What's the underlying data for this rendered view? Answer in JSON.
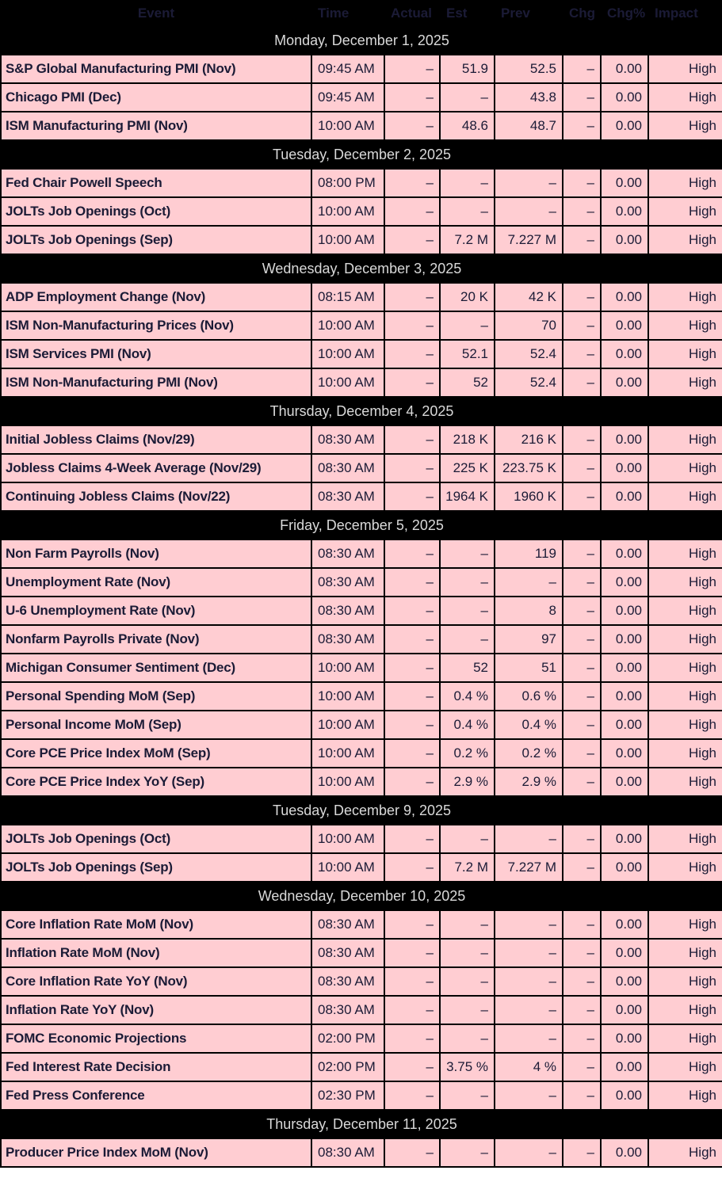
{
  "colors": {
    "header_bg": "#000000",
    "header_text": "#ffffff",
    "row_bg": "#ffcdd2",
    "row_text": "#1b1b36",
    "separator_bg": "#000000",
    "separator_text": "#d9d9d9",
    "border": "#000000"
  },
  "table": {
    "columns": [
      "Event",
      "Time",
      "Actual",
      "Est",
      "Prev",
      "Chg",
      "Chg%",
      "Impact"
    ],
    "sections": [
      {
        "date": "Monday, December 1, 2025",
        "rows": [
          {
            "event": "S&P Global Manufacturing PMI (Nov)",
            "time": "09:45 AM",
            "actual": "–",
            "est": "51.9",
            "prev": "52.5",
            "chg": "–",
            "chg_pct": "0.00",
            "impact": "High"
          },
          {
            "event": "Chicago PMI (Dec)",
            "time": "09:45 AM",
            "actual": "–",
            "est": "–",
            "prev": "43.8",
            "chg": "–",
            "chg_pct": "0.00",
            "impact": "High"
          },
          {
            "event": "ISM Manufacturing PMI (Nov)",
            "time": "10:00 AM",
            "actual": "–",
            "est": "48.6",
            "prev": "48.7",
            "chg": "–",
            "chg_pct": "0.00",
            "impact": "High"
          }
        ]
      },
      {
        "date": "Tuesday, December 2, 2025",
        "rows": [
          {
            "event": "Fed Chair Powell Speech",
            "time": "08:00 PM",
            "actual": "–",
            "est": "–",
            "prev": "–",
            "chg": "–",
            "chg_pct": "0.00",
            "impact": "High"
          },
          {
            "event": "JOLTs Job Openings (Oct)",
            "time": "10:00 AM",
            "actual": "–",
            "est": "–",
            "prev": "–",
            "chg": "–",
            "chg_pct": "0.00",
            "impact": "High"
          },
          {
            "event": "JOLTs Job Openings (Sep)",
            "time": "10:00 AM",
            "actual": "–",
            "est": "7.2 M",
            "prev": "7.227 M",
            "chg": "–",
            "chg_pct": "0.00",
            "impact": "High"
          }
        ]
      },
      {
        "date": "Wednesday, December 3, 2025",
        "rows": [
          {
            "event": "ADP Employment Change (Nov)",
            "time": "08:15 AM",
            "actual": "–",
            "est": "20 K",
            "prev": "42 K",
            "chg": "–",
            "chg_pct": "0.00",
            "impact": "High"
          },
          {
            "event": "ISM Non-Manufacturing Prices (Nov)",
            "time": "10:00 AM",
            "actual": "–",
            "est": "–",
            "prev": "70",
            "chg": "–",
            "chg_pct": "0.00",
            "impact": "High"
          },
          {
            "event": "ISM Services PMI (Nov)",
            "time": "10:00 AM",
            "actual": "–",
            "est": "52.1",
            "prev": "52.4",
            "chg": "–",
            "chg_pct": "0.00",
            "impact": "High"
          },
          {
            "event": "ISM Non-Manufacturing PMI (Nov)",
            "time": "10:00 AM",
            "actual": "–",
            "est": "52",
            "prev": "52.4",
            "chg": "–",
            "chg_pct": "0.00",
            "impact": "High"
          }
        ]
      },
      {
        "date": "Thursday, December 4, 2025",
        "rows": [
          {
            "event": "Initial Jobless Claims (Nov/29)",
            "time": "08:30 AM",
            "actual": "–",
            "est": "218 K",
            "prev": "216 K",
            "chg": "–",
            "chg_pct": "0.00",
            "impact": "High"
          },
          {
            "event": "Jobless Claims 4-Week Average (Nov/29)",
            "time": "08:30 AM",
            "actual": "–",
            "est": "225 K",
            "prev": "223.75 K",
            "chg": "–",
            "chg_pct": "0.00",
            "impact": "High"
          },
          {
            "event": "Continuing Jobless Claims (Nov/22)",
            "time": "08:30 AM",
            "actual": "–",
            "est": "1964 K",
            "prev": "1960 K",
            "chg": "–",
            "chg_pct": "0.00",
            "impact": "High"
          }
        ]
      },
      {
        "date": "Friday, December 5, 2025",
        "rows": [
          {
            "event": "Non Farm Payrolls (Nov)",
            "time": "08:30 AM",
            "actual": "–",
            "est": "–",
            "prev": "119",
            "chg": "–",
            "chg_pct": "0.00",
            "impact": "High"
          },
          {
            "event": "Unemployment Rate (Nov)",
            "time": "08:30 AM",
            "actual": "–",
            "est": "–",
            "prev": "–",
            "chg": "–",
            "chg_pct": "0.00",
            "impact": "High"
          },
          {
            "event": "U-6 Unemployment Rate (Nov)",
            "time": "08:30 AM",
            "actual": "–",
            "est": "–",
            "prev": "8",
            "chg": "–",
            "chg_pct": "0.00",
            "impact": "High"
          },
          {
            "event": "Nonfarm Payrolls Private (Nov)",
            "time": "08:30 AM",
            "actual": "–",
            "est": "–",
            "prev": "97",
            "chg": "–",
            "chg_pct": "0.00",
            "impact": "High"
          },
          {
            "event": "Michigan Consumer Sentiment (Dec)",
            "time": "10:00 AM",
            "actual": "–",
            "est": "52",
            "prev": "51",
            "chg": "–",
            "chg_pct": "0.00",
            "impact": "High"
          },
          {
            "event": "Personal Spending MoM (Sep)",
            "time": "10:00 AM",
            "actual": "–",
            "est": "0.4 %",
            "prev": "0.6 %",
            "chg": "–",
            "chg_pct": "0.00",
            "impact": "High"
          },
          {
            "event": "Personal Income MoM (Sep)",
            "time": "10:00 AM",
            "actual": "–",
            "est": "0.4 %",
            "prev": "0.4 %",
            "chg": "–",
            "chg_pct": "0.00",
            "impact": "High"
          },
          {
            "event": "Core PCE Price Index MoM (Sep)",
            "time": "10:00 AM",
            "actual": "–",
            "est": "0.2 %",
            "prev": "0.2 %",
            "chg": "–",
            "chg_pct": "0.00",
            "impact": "High"
          },
          {
            "event": "Core PCE Price Index YoY (Sep)",
            "time": "10:00 AM",
            "actual": "–",
            "est": "2.9 %",
            "prev": "2.9 %",
            "chg": "–",
            "chg_pct": "0.00",
            "impact": "High"
          }
        ]
      },
      {
        "date": "Tuesday, December 9, 2025",
        "rows": [
          {
            "event": "JOLTs Job Openings (Oct)",
            "time": "10:00 AM",
            "actual": "–",
            "est": "–",
            "prev": "–",
            "chg": "–",
            "chg_pct": "0.00",
            "impact": "High"
          },
          {
            "event": "JOLTs Job Openings (Sep)",
            "time": "10:00 AM",
            "actual": "–",
            "est": "7.2 M",
            "prev": "7.227 M",
            "chg": "–",
            "chg_pct": "0.00",
            "impact": "High"
          }
        ]
      },
      {
        "date": "Wednesday, December 10, 2025",
        "rows": [
          {
            "event": "Core Inflation Rate MoM (Nov)",
            "time": "08:30 AM",
            "actual": "–",
            "est": "–",
            "prev": "–",
            "chg": "–",
            "chg_pct": "0.00",
            "impact": "High"
          },
          {
            "event": "Inflation Rate MoM (Nov)",
            "time": "08:30 AM",
            "actual": "–",
            "est": "–",
            "prev": "–",
            "chg": "–",
            "chg_pct": "0.00",
            "impact": "High"
          },
          {
            "event": "Core Inflation Rate YoY (Nov)",
            "time": "08:30 AM",
            "actual": "–",
            "est": "–",
            "prev": "–",
            "chg": "–",
            "chg_pct": "0.00",
            "impact": "High"
          },
          {
            "event": "Inflation Rate YoY (Nov)",
            "time": "08:30 AM",
            "actual": "–",
            "est": "–",
            "prev": "–",
            "chg": "–",
            "chg_pct": "0.00",
            "impact": "High"
          },
          {
            "event": "FOMC Economic Projections",
            "time": "02:00 PM",
            "actual": "–",
            "est": "–",
            "prev": "–",
            "chg": "–",
            "chg_pct": "0.00",
            "impact": "High"
          },
          {
            "event": "Fed Interest Rate Decision",
            "time": "02:00 PM",
            "actual": "–",
            "est": "3.75 %",
            "prev": "4 %",
            "chg": "–",
            "chg_pct": "0.00",
            "impact": "High"
          },
          {
            "event": "Fed Press Conference",
            "time": "02:30 PM",
            "actual": "–",
            "est": "–",
            "prev": "–",
            "chg": "–",
            "chg_pct": "0.00",
            "impact": "High"
          }
        ]
      },
      {
        "date": "Thursday, December 11, 2025",
        "rows": [
          {
            "event": "Producer Price Index MoM (Nov)",
            "time": "08:30 AM",
            "actual": "–",
            "est": "–",
            "prev": "–",
            "chg": "–",
            "chg_pct": "0.00",
            "impact": "High"
          }
        ]
      }
    ]
  }
}
